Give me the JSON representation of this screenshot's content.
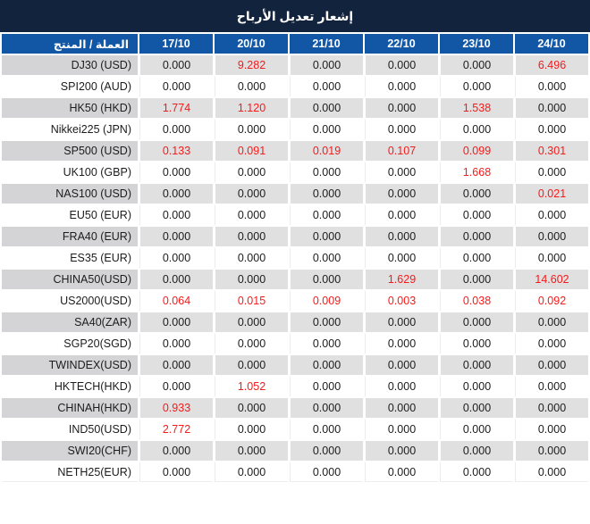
{
  "title": "إشعار تعديل الأرباح",
  "table": {
    "label_header": "العملة / المنتج",
    "date_headers": [
      "17/10",
      "20/10",
      "21/10",
      "22/10",
      "23/10",
      "24/10"
    ],
    "rows": [
      {
        "label": "DJ30 (USD)",
        "values": [
          "0.000",
          "9.282",
          "0.000",
          "0.000",
          "0.000",
          "6.496"
        ]
      },
      {
        "label": "SPI200 (AUD)",
        "values": [
          "0.000",
          "0.000",
          "0.000",
          "0.000",
          "0.000",
          "0.000"
        ]
      },
      {
        "label": "HK50 (HKD)",
        "values": [
          "1.774",
          "1.120",
          "0.000",
          "0.000",
          "1.538",
          "0.000"
        ]
      },
      {
        "label": "Nikkei225 (JPN)",
        "values": [
          "0.000",
          "0.000",
          "0.000",
          "0.000",
          "0.000",
          "0.000"
        ]
      },
      {
        "label": "SP500 (USD)",
        "values": [
          "0.133",
          "0.091",
          "0.019",
          "0.107",
          "0.099",
          "0.301"
        ]
      },
      {
        "label": "UK100 (GBP)",
        "values": [
          "0.000",
          "0.000",
          "0.000",
          "0.000",
          "1.668",
          "0.000"
        ]
      },
      {
        "label": "NAS100 (USD)",
        "values": [
          "0.000",
          "0.000",
          "0.000",
          "0.000",
          "0.000",
          "0.021"
        ]
      },
      {
        "label": "EU50 (EUR)",
        "values": [
          "0.000",
          "0.000",
          "0.000",
          "0.000",
          "0.000",
          "0.000"
        ]
      },
      {
        "label": "FRA40 (EUR)",
        "values": [
          "0.000",
          "0.000",
          "0.000",
          "0.000",
          "0.000",
          "0.000"
        ]
      },
      {
        "label": "ES35 (EUR)",
        "values": [
          "0.000",
          "0.000",
          "0.000",
          "0.000",
          "0.000",
          "0.000"
        ]
      },
      {
        "label": "CHINA50(USD)",
        "values": [
          "0.000",
          "0.000",
          "0.000",
          "1.629",
          "0.000",
          "14.602"
        ]
      },
      {
        "label": "US2000(USD)",
        "values": [
          "0.064",
          "0.015",
          "0.009",
          "0.003",
          "0.038",
          "0.092"
        ]
      },
      {
        "label": "SA40(ZAR)",
        "values": [
          "0.000",
          "0.000",
          "0.000",
          "0.000",
          "0.000",
          "0.000"
        ]
      },
      {
        "label": "SGP20(SGD)",
        "values": [
          "0.000",
          "0.000",
          "0.000",
          "0.000",
          "0.000",
          "0.000"
        ]
      },
      {
        "label": "TWINDEX(USD)",
        "values": [
          "0.000",
          "0.000",
          "0.000",
          "0.000",
          "0.000",
          "0.000"
        ]
      },
      {
        "label": "HKTECH(HKD)",
        "values": [
          "0.000",
          "1.052",
          "0.000",
          "0.000",
          "0.000",
          "0.000"
        ]
      },
      {
        "label": "CHINAH(HKD)",
        "values": [
          "0.933",
          "0.000",
          "0.000",
          "0.000",
          "0.000",
          "0.000"
        ]
      },
      {
        "label": "IND50(USD)",
        "values": [
          "2.772",
          "0.000",
          "0.000",
          "0.000",
          "0.000",
          "0.000"
        ]
      },
      {
        "label": "SWI20(CHF)",
        "values": [
          "0.000",
          "0.000",
          "0.000",
          "0.000",
          "0.000",
          "0.000"
        ]
      },
      {
        "label": "NETH25(EUR)",
        "values": [
          "0.000",
          "0.000",
          "0.000",
          "0.000",
          "0.000",
          "0.000"
        ]
      }
    ]
  },
  "colors": {
    "title_bar": "#12233e",
    "header_blue": "#1157a6",
    "row_gray": "#e0e0e1",
    "label_gray": "#d4d4d6",
    "value_red": "#f81919",
    "value_black": "#1c1c1c"
  }
}
